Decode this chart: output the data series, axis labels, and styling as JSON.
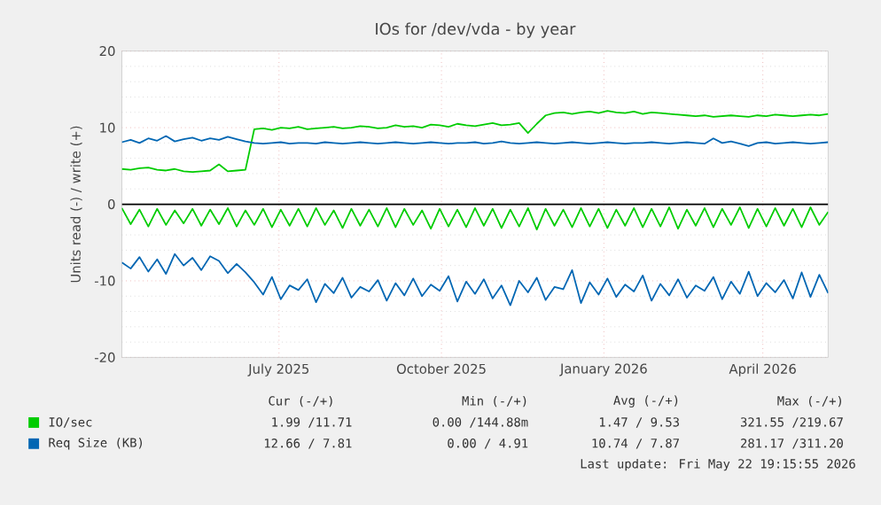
{
  "chart_data": {
    "type": "line",
    "title": "IOs for /dev/vda - by year",
    "ylabel": "Units read (-) / write (+)",
    "x": [
      "2025-04-18",
      "2025-04-23",
      "2025-04-28",
      "2025-05-03",
      "2025-05-08",
      "2025-05-13",
      "2025-05-18",
      "2025-05-23",
      "2025-05-28",
      "2025-06-02",
      "2025-06-07",
      "2025-06-12",
      "2025-06-17",
      "2025-06-22",
      "2025-06-27",
      "2025-07-02",
      "2025-07-07",
      "2025-07-12",
      "2025-07-17",
      "2025-07-22",
      "2025-07-27",
      "2025-08-01",
      "2025-08-06",
      "2025-08-11",
      "2025-08-16",
      "2025-08-21",
      "2025-08-26",
      "2025-08-31",
      "2025-09-05",
      "2025-09-10",
      "2025-09-15",
      "2025-09-20",
      "2025-09-25",
      "2025-09-30",
      "2025-10-05",
      "2025-10-10",
      "2025-10-15",
      "2025-10-20",
      "2025-10-25",
      "2025-10-30",
      "2025-11-04",
      "2025-11-09",
      "2025-11-14",
      "2025-11-19",
      "2025-11-24",
      "2025-11-29",
      "2025-12-04",
      "2025-12-09",
      "2025-12-14",
      "2025-12-19",
      "2025-12-24",
      "2025-12-29",
      "2026-01-03",
      "2026-01-08",
      "2026-01-13",
      "2026-01-18",
      "2026-01-23",
      "2026-01-28",
      "2026-02-02",
      "2026-02-07",
      "2026-02-12",
      "2026-02-17",
      "2026-02-22",
      "2026-02-27",
      "2026-03-04",
      "2026-03-09",
      "2026-03-14",
      "2026-03-19",
      "2026-03-24",
      "2026-03-29",
      "2026-04-03",
      "2026-04-08",
      "2026-04-13",
      "2026-04-18",
      "2026-04-23",
      "2026-04-28",
      "2026-05-03",
      "2026-05-08",
      "2026-05-13",
      "2026-05-18",
      "2026-05-23"
    ],
    "series": [
      {
        "name": "IO/sec",
        "color": "#00cc00",
        "values": [
          4.6,
          4.5,
          4.7,
          4.8,
          4.5,
          4.4,
          4.6,
          4.3,
          4.2,
          4.3,
          4.4,
          5.2,
          4.3,
          4.4,
          4.5,
          9.8,
          9.9,
          9.7,
          10.0,
          9.9,
          10.1,
          9.8,
          9.9,
          10.0,
          10.1,
          9.9,
          10.0,
          10.2,
          10.1,
          9.9,
          10.0,
          10.3,
          10.1,
          10.2,
          10.0,
          10.4,
          10.3,
          10.1,
          10.5,
          10.3,
          10.2,
          10.4,
          10.6,
          10.3,
          10.4,
          10.6,
          9.3,
          10.5,
          11.6,
          11.9,
          12.0,
          11.8,
          12.0,
          12.1,
          11.9,
          12.2,
          12.0,
          11.9,
          12.1,
          11.8,
          12.0,
          11.9,
          11.8,
          11.7,
          11.6,
          11.5,
          11.6,
          11.4,
          11.5,
          11.6,
          11.5,
          11.4,
          11.6,
          11.5,
          11.7,
          11.6,
          11.5,
          11.6,
          11.7,
          11.6,
          11.8
        ]
      },
      {
        "color": "#00cc00",
        "values": [
          -0.5,
          -2.6,
          -0.7,
          -2.9,
          -0.6,
          -2.7,
          -0.8,
          -2.5,
          -0.6,
          -2.8,
          -0.7,
          -2.6,
          -0.5,
          -2.9,
          -0.8,
          -2.7,
          -0.6,
          -3.0,
          -0.7,
          -2.8,
          -0.6,
          -2.9,
          -0.5,
          -2.7,
          -0.8,
          -3.1,
          -0.6,
          -2.8,
          -0.7,
          -2.9,
          -0.5,
          -3.0,
          -0.6,
          -2.7,
          -0.8,
          -3.2,
          -0.6,
          -2.9,
          -0.7,
          -3.0,
          -0.5,
          -2.8,
          -0.6,
          -3.1,
          -0.7,
          -2.9,
          -0.5,
          -3.3,
          -0.6,
          -2.8,
          -0.7,
          -3.0,
          -0.5,
          -2.9,
          -0.6,
          -3.1,
          -0.7,
          -2.8,
          -0.5,
          -3.0,
          -0.6,
          -2.9,
          -0.4,
          -3.2,
          -0.7,
          -2.8,
          -0.5,
          -3.0,
          -0.6,
          -2.7,
          -0.4,
          -3.1,
          -0.6,
          -2.9,
          -0.5,
          -2.8,
          -0.6,
          -3.0,
          -0.4,
          -2.7,
          -1.0
        ]
      },
      {
        "name": "Req Size (KB)",
        "color": "#0066b3",
        "values": [
          8.1,
          8.4,
          8.0,
          8.6,
          8.3,
          8.9,
          8.2,
          8.5,
          8.7,
          8.3,
          8.6,
          8.4,
          8.8,
          8.5,
          8.2,
          8.0,
          7.9,
          8.0,
          8.1,
          7.9,
          8.0,
          8.0,
          7.9,
          8.1,
          8.0,
          7.9,
          8.0,
          8.1,
          8.0,
          7.9,
          8.0,
          8.1,
          8.0,
          7.9,
          8.0,
          8.1,
          8.0,
          7.9,
          8.0,
          8.0,
          8.1,
          7.9,
          8.0,
          8.2,
          8.0,
          7.9,
          8.0,
          8.1,
          8.0,
          7.9,
          8.0,
          8.1,
          8.0,
          7.9,
          8.0,
          8.1,
          8.0,
          7.9,
          8.0,
          8.0,
          8.1,
          8.0,
          7.9,
          8.0,
          8.1,
          8.0,
          7.9,
          8.6,
          8.0,
          8.2,
          7.9,
          7.6,
          8.0,
          8.1,
          7.9,
          8.0,
          8.1,
          8.0,
          7.9,
          8.0,
          8.1
        ]
      },
      {
        "color": "#0066b3",
        "values": [
          -7.6,
          -8.4,
          -6.9,
          -8.8,
          -7.2,
          -9.1,
          -6.5,
          -8.0,
          -7.0,
          -8.6,
          -6.8,
          -7.4,
          -9.0,
          -7.8,
          -8.9,
          -10.2,
          -11.8,
          -9.5,
          -12.4,
          -10.6,
          -11.2,
          -9.8,
          -12.8,
          -10.4,
          -11.6,
          -9.6,
          -12.2,
          -10.8,
          -11.4,
          -9.9,
          -12.6,
          -10.3,
          -11.9,
          -9.7,
          -12.0,
          -10.5,
          -11.3,
          -9.4,
          -12.7,
          -10.1,
          -11.7,
          -9.8,
          -12.3,
          -10.6,
          -13.2,
          -10.0,
          -11.5,
          -9.6,
          -12.5,
          -10.8,
          -11.1,
          -8.6,
          -12.9,
          -10.2,
          -11.8,
          -9.7,
          -12.1,
          -10.5,
          -11.4,
          -9.3,
          -12.6,
          -10.4,
          -11.9,
          -9.8,
          -12.2,
          -10.6,
          -11.3,
          -9.5,
          -12.4,
          -10.1,
          -11.7,
          -8.8,
          -12.0,
          -10.3,
          -11.5,
          -9.9,
          -12.3,
          -8.9,
          -12.1,
          -9.2,
          -11.6
        ]
      }
    ],
    "xlim": [
      "2025-04-18",
      "2026-05-23"
    ],
    "xticks": [
      {
        "value": "2025-07-16",
        "label": "July 2025"
      },
      {
        "value": "2025-10-16",
        "label": "October 2025"
      },
      {
        "value": "2026-01-16",
        "label": "January 2026"
      },
      {
        "value": "2026-04-16",
        "label": "April 2026"
      }
    ],
    "ylim": [
      -20,
      20
    ],
    "yticks": [
      -20,
      -10,
      0,
      10,
      20
    ],
    "ref_lines": [
      {
        "axis": "y",
        "value": 0,
        "color": "#000000"
      }
    ],
    "grid": true,
    "legend": "bottom",
    "marker": "none",
    "line_style": "solid",
    "annotations": [
      "Cur (-/+)",
      "Min (-/+)",
      "Avg (-/+)",
      "Max (-/+)",
      "1.99 /11.71",
      "0.00 /144.88m",
      "1.47 / 9.53",
      "321.55 /219.67",
      "12.66 / 7.81",
      "0.00 / 4.91",
      "10.74 / 7.87",
      "281.17 /311.20",
      "Last update: Fri May 22 19:15:55 2026"
    ]
  }
}
